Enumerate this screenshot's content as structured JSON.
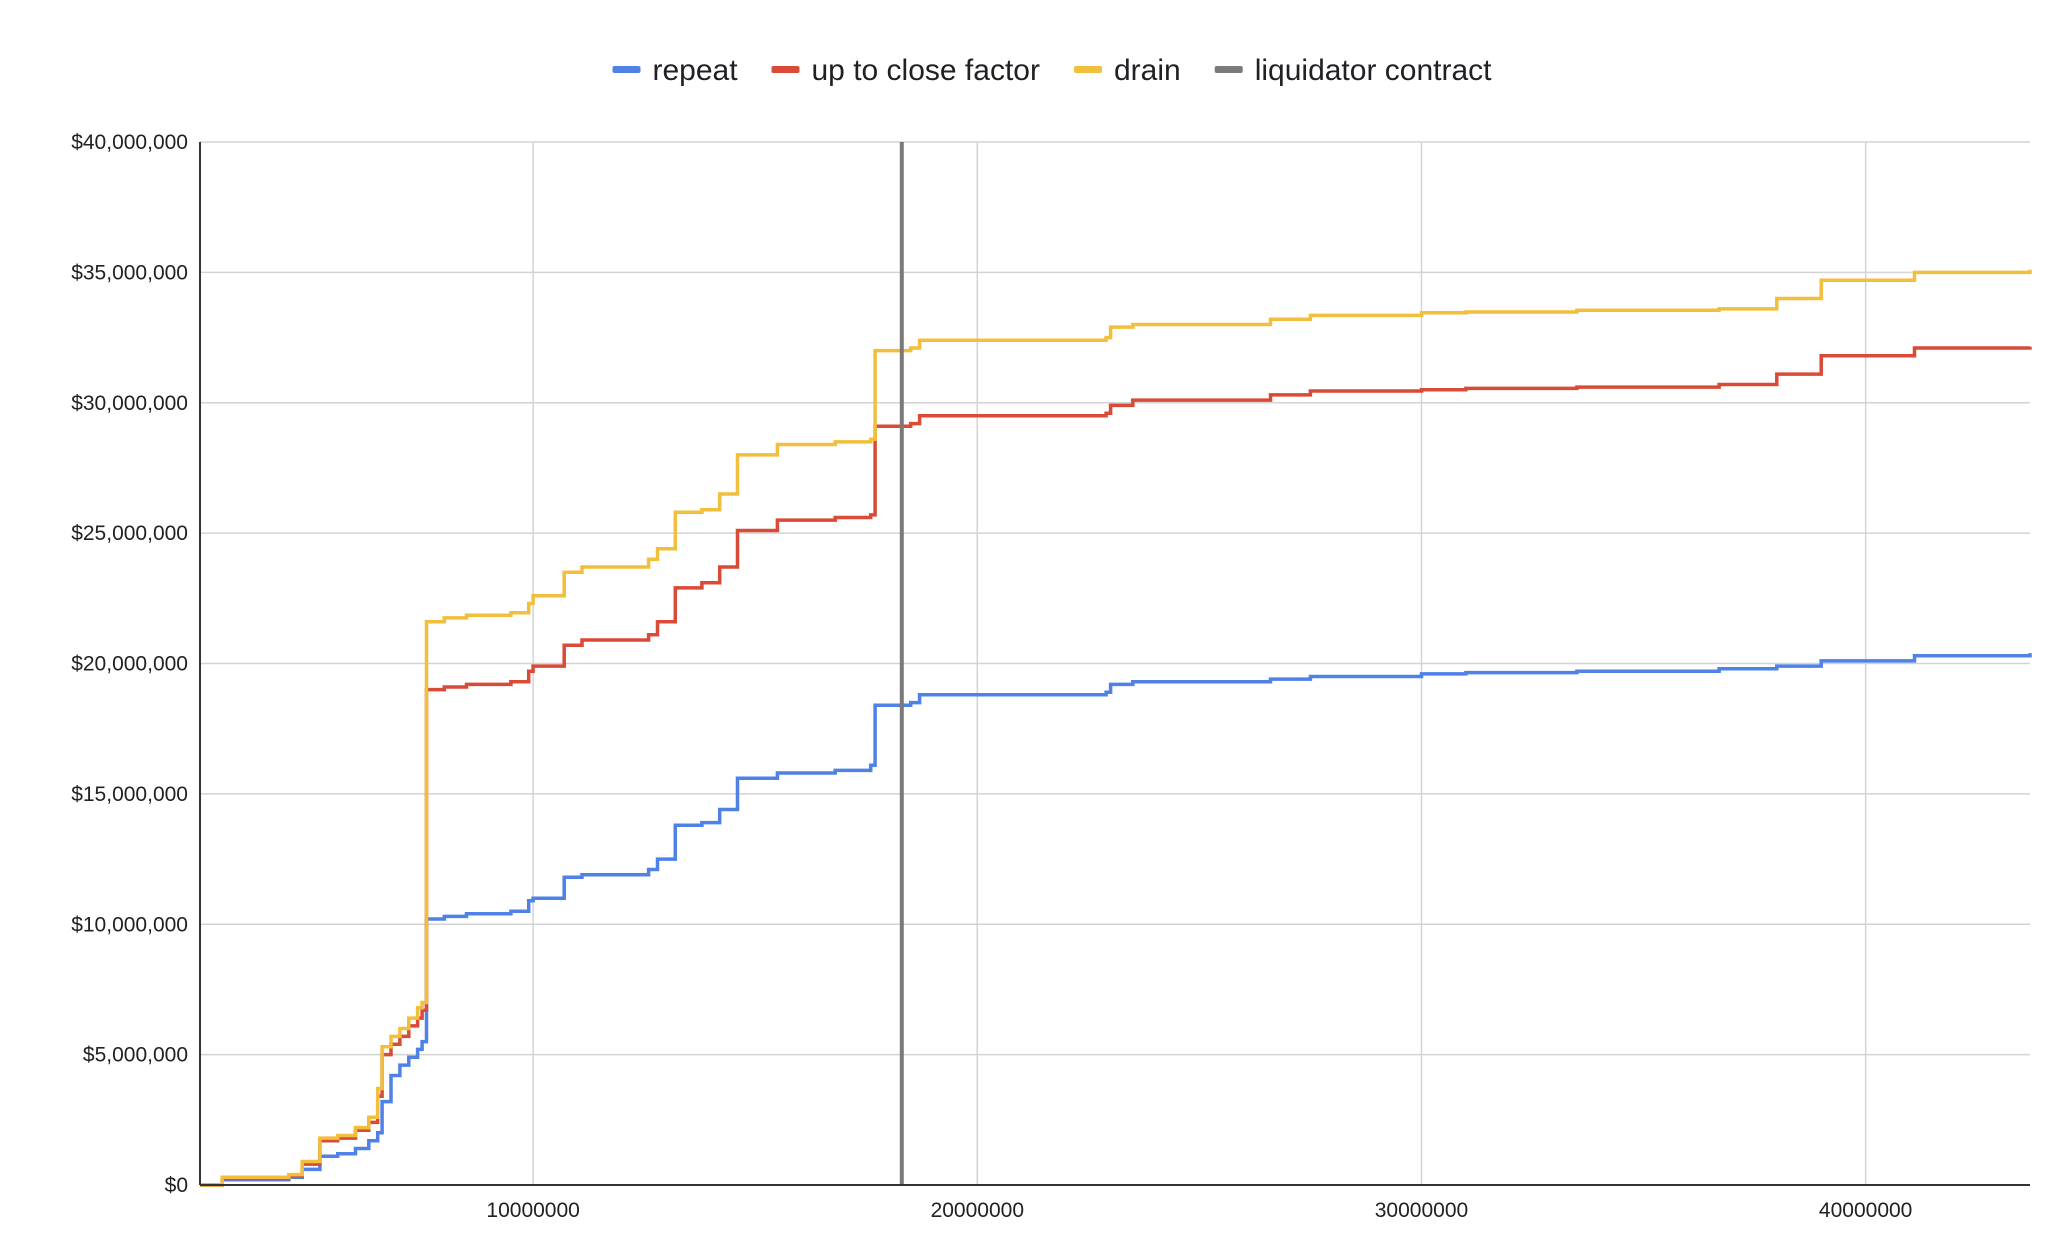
{
  "chart_data": {
    "type": "line",
    "title": "",
    "xlabel": "",
    "ylabel": "",
    "xlim": [
      2500000,
      43700000
    ],
    "ylim": [
      0,
      40000000
    ],
    "x_ticks": [
      10000000,
      20000000,
      30000000,
      40000000
    ],
    "x_tick_labels": [
      "10000000",
      "20000000",
      "30000000",
      "40000000"
    ],
    "y_ticks": [
      0,
      5000000,
      10000000,
      15000000,
      20000000,
      25000000,
      30000000,
      35000000,
      40000000
    ],
    "y_tick_labels": [
      "$0",
      "$5,000,000",
      "$10,000,000",
      "$15,000,000",
      "$20,000,000",
      "$25,000,000",
      "$30,000,000",
      "$35,000,000",
      "$40,000,000"
    ],
    "grid": true,
    "legend_position": "top-center",
    "legend": [
      {
        "name": "repeat",
        "color": "#4f81e6"
      },
      {
        "name": "up to close factor",
        "color": "#d94a37"
      },
      {
        "name": "drain",
        "color": "#f2bf3c"
      },
      {
        "name": "liquidator contract",
        "color": "#7a7a7a"
      }
    ],
    "series": [
      {
        "name": "repeat",
        "color": "#4f81e6",
        "step": true,
        "points": [
          [
            2500000,
            0
          ],
          [
            3000000,
            200000
          ],
          [
            4500000,
            300000
          ],
          [
            4800000,
            600000
          ],
          [
            5200000,
            1100000
          ],
          [
            5600000,
            1200000
          ],
          [
            6000000,
            1400000
          ],
          [
            6300000,
            1700000
          ],
          [
            6500000,
            2000000
          ],
          [
            6600000,
            3200000
          ],
          [
            6800000,
            4200000
          ],
          [
            7000000,
            4600000
          ],
          [
            7200000,
            4900000
          ],
          [
            7400000,
            5200000
          ],
          [
            7500000,
            5500000
          ],
          [
            7600000,
            10200000
          ],
          [
            8000000,
            10300000
          ],
          [
            8500000,
            10400000
          ],
          [
            9500000,
            10500000
          ],
          [
            9900000,
            10900000
          ],
          [
            10000000,
            11000000
          ],
          [
            10700000,
            11800000
          ],
          [
            11100000,
            11900000
          ],
          [
            12600000,
            12100000
          ],
          [
            12800000,
            12500000
          ],
          [
            13200000,
            13800000
          ],
          [
            13800000,
            13900000
          ],
          [
            14200000,
            14400000
          ],
          [
            14600000,
            15600000
          ],
          [
            15500000,
            15800000
          ],
          [
            16800000,
            15900000
          ],
          [
            17600000,
            16100000
          ],
          [
            17700000,
            18400000
          ],
          [
            18500000,
            18500000
          ],
          [
            18700000,
            18800000
          ],
          [
            21300000,
            18800000
          ],
          [
            22900000,
            18900000
          ],
          [
            23000000,
            19200000
          ],
          [
            23500000,
            19300000
          ],
          [
            26600000,
            19400000
          ],
          [
            27500000,
            19500000
          ],
          [
            30000000,
            19600000
          ],
          [
            31000000,
            19650000
          ],
          [
            33500000,
            19700000
          ],
          [
            36700000,
            19800000
          ],
          [
            38000000,
            19900000
          ],
          [
            39000000,
            20100000
          ],
          [
            41100000,
            20300000
          ],
          [
            43700000,
            20400000
          ]
        ]
      },
      {
        "name": "up to close factor",
        "color": "#d94a37",
        "step": true,
        "points": [
          [
            2500000,
            0
          ],
          [
            3000000,
            250000
          ],
          [
            4500000,
            350000
          ],
          [
            4800000,
            800000
          ],
          [
            5200000,
            1700000
          ],
          [
            5600000,
            1800000
          ],
          [
            6000000,
            2100000
          ],
          [
            6300000,
            2400000
          ],
          [
            6500000,
            3400000
          ],
          [
            6600000,
            5000000
          ],
          [
            6800000,
            5400000
          ],
          [
            7000000,
            5700000
          ],
          [
            7200000,
            6100000
          ],
          [
            7400000,
            6400000
          ],
          [
            7500000,
            6700000
          ],
          [
            7600000,
            19000000
          ],
          [
            8000000,
            19100000
          ],
          [
            8500000,
            19200000
          ],
          [
            9500000,
            19300000
          ],
          [
            9900000,
            19700000
          ],
          [
            10000000,
            19900000
          ],
          [
            10700000,
            20700000
          ],
          [
            11100000,
            20900000
          ],
          [
            12600000,
            21100000
          ],
          [
            12800000,
            21600000
          ],
          [
            13200000,
            22900000
          ],
          [
            13800000,
            23100000
          ],
          [
            14200000,
            23700000
          ],
          [
            14600000,
            25100000
          ],
          [
            15500000,
            25500000
          ],
          [
            16800000,
            25600000
          ],
          [
            17600000,
            25700000
          ],
          [
            17700000,
            29100000
          ],
          [
            18500000,
            29200000
          ],
          [
            18700000,
            29500000
          ],
          [
            21300000,
            29500000
          ],
          [
            22900000,
            29600000
          ],
          [
            23000000,
            29900000
          ],
          [
            23500000,
            30100000
          ],
          [
            26600000,
            30300000
          ],
          [
            27500000,
            30450000
          ],
          [
            30000000,
            30500000
          ],
          [
            31000000,
            30550000
          ],
          [
            33500000,
            30600000
          ],
          [
            36700000,
            30700000
          ],
          [
            38000000,
            31100000
          ],
          [
            39000000,
            31800000
          ],
          [
            41100000,
            32100000
          ],
          [
            43700000,
            32150000
          ]
        ]
      },
      {
        "name": "drain",
        "color": "#f2bf3c",
        "step": true,
        "points": [
          [
            2500000,
            0
          ],
          [
            3000000,
            300000
          ],
          [
            4500000,
            400000
          ],
          [
            4800000,
            900000
          ],
          [
            5200000,
            1800000
          ],
          [
            5600000,
            1900000
          ],
          [
            6000000,
            2200000
          ],
          [
            6300000,
            2600000
          ],
          [
            6500000,
            3700000
          ],
          [
            6600000,
            5300000
          ],
          [
            6800000,
            5700000
          ],
          [
            7000000,
            6000000
          ],
          [
            7200000,
            6400000
          ],
          [
            7400000,
            6800000
          ],
          [
            7500000,
            7000000
          ],
          [
            7600000,
            21600000
          ],
          [
            8000000,
            21750000
          ],
          [
            8500000,
            21850000
          ],
          [
            9500000,
            21950000
          ],
          [
            9900000,
            22300000
          ],
          [
            10000000,
            22600000
          ],
          [
            10700000,
            23500000
          ],
          [
            11100000,
            23700000
          ],
          [
            12600000,
            24000000
          ],
          [
            12800000,
            24400000
          ],
          [
            13200000,
            25800000
          ],
          [
            13800000,
            25900000
          ],
          [
            14200000,
            26500000
          ],
          [
            14600000,
            28000000
          ],
          [
            15500000,
            28400000
          ],
          [
            16800000,
            28500000
          ],
          [
            17600000,
            28600000
          ],
          [
            17700000,
            32000000
          ],
          [
            18500000,
            32100000
          ],
          [
            18700000,
            32400000
          ],
          [
            21300000,
            32400000
          ],
          [
            22900000,
            32500000
          ],
          [
            23000000,
            32900000
          ],
          [
            23500000,
            33000000
          ],
          [
            26600000,
            33200000
          ],
          [
            27500000,
            33350000
          ],
          [
            30000000,
            33450000
          ],
          [
            31000000,
            33480000
          ],
          [
            33500000,
            33550000
          ],
          [
            36700000,
            33600000
          ],
          [
            38000000,
            34000000
          ],
          [
            39000000,
            34700000
          ],
          [
            41100000,
            35000000
          ],
          [
            43700000,
            35100000
          ]
        ]
      }
    ],
    "vertical_markers": [
      {
        "name": "liquidator contract",
        "color": "#7a7a7a",
        "x": 18300000
      }
    ]
  }
}
